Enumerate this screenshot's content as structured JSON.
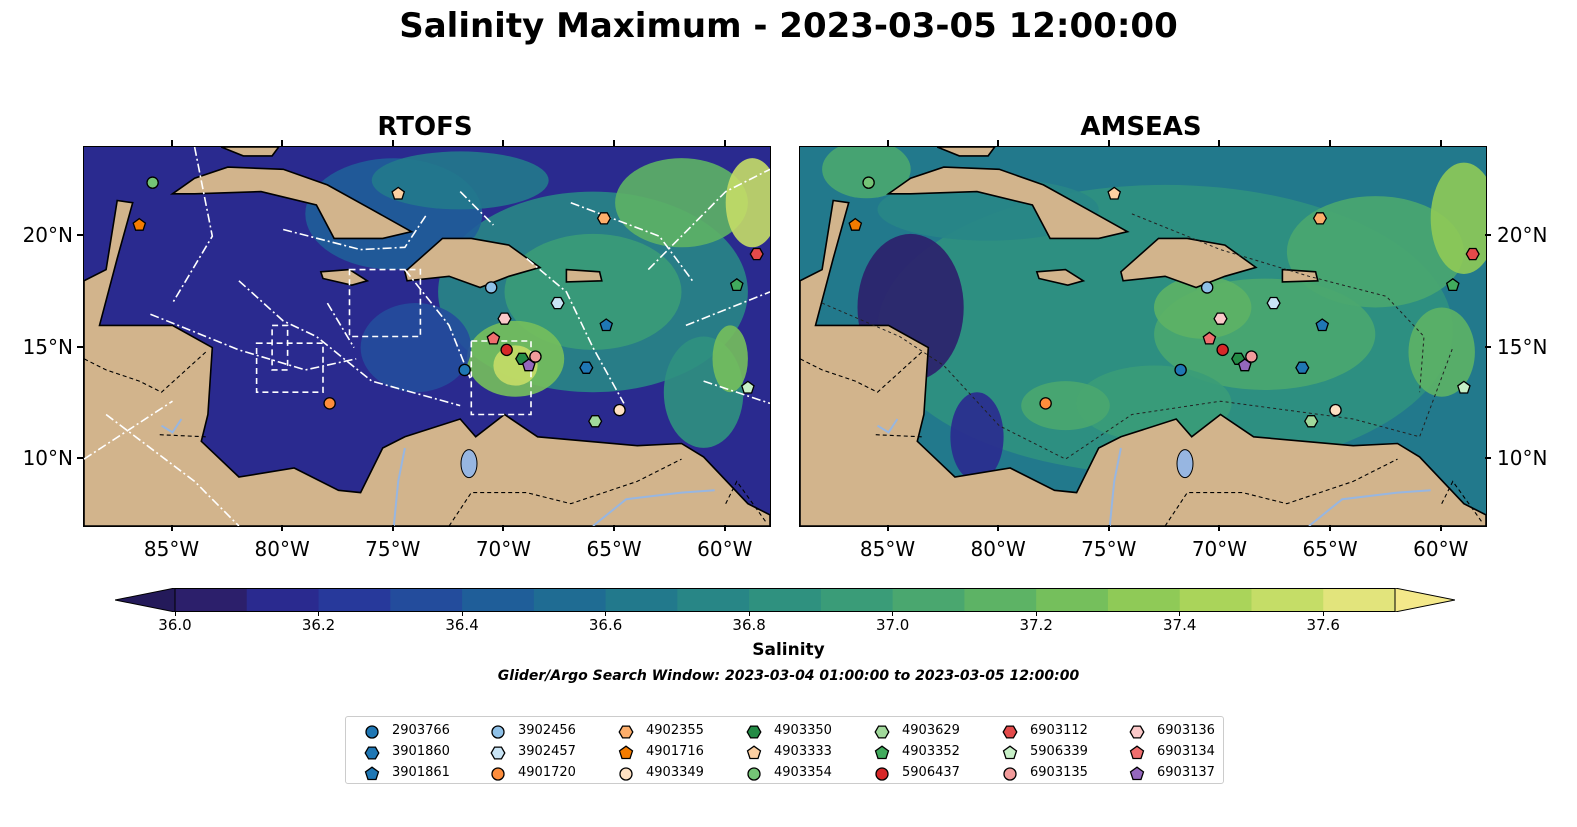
{
  "title": "Salinity Maximum - 2023-03-05 12:00:00",
  "panels": [
    {
      "title": "RTOFS"
    },
    {
      "title": "AMSEAS"
    }
  ],
  "colors": {
    "land": "#d2b48c",
    "lake": "#97b6e1",
    "colormap": [
      "#2c1f6b",
      "#2a2a8f",
      "#27399b",
      "#234c9c",
      "#1f5e99",
      "#1f6c93",
      "#22798c",
      "#288686",
      "#2f917f",
      "#3a9c78",
      "#4aa76f",
      "#5db365",
      "#75bf5c",
      "#8fca57",
      "#aad45a",
      "#c5dd67",
      "#e2e47c"
    ],
    "above": "#f4e98a",
    "below": "#241a5a"
  },
  "axes": {
    "lon_ticks": [
      "85°W",
      "80°W",
      "75°W",
      "70°W",
      "65°W",
      "60°W"
    ],
    "lat_ticks": [
      "20°N",
      "15°N",
      "10°N"
    ]
  },
  "colorbar": {
    "label": "Salinity",
    "min": 36.0,
    "max": 37.7,
    "step": 0.1,
    "tick_labels": [
      "36.0",
      "36.2",
      "36.4",
      "36.6",
      "36.8",
      "37.0",
      "37.2",
      "37.4",
      "37.6"
    ],
    "extend": "both"
  },
  "search_window": "Glider/Argo Search Window: 2023-03-04 01:00:00 to 2023-03-05 12:00:00",
  "chart_data": {
    "type": "scatter",
    "x_unit": "longitude",
    "y_unit": "latitude",
    "xlim": [
      -89,
      -58
    ],
    "ylim": [
      7,
      24
    ],
    "series": [
      {
        "name": "2903766",
        "marker": "circle",
        "color": "#1f77b4",
        "lon": -71.8,
        "lat": 14.0
      },
      {
        "name": "3901860",
        "marker": "hexagon",
        "color": "#1f77b4",
        "lon": -66.3,
        "lat": 14.1
      },
      {
        "name": "3901861",
        "marker": "pentagon",
        "color": "#1f77b4",
        "lon": -65.4,
        "lat": 16.0
      },
      {
        "name": "3902456",
        "marker": "circle",
        "color": "#8fc1e8",
        "lon": -70.6,
        "lat": 17.7
      },
      {
        "name": "3902457",
        "marker": "hexagon",
        "color": "#c9e4f5",
        "lon": -67.6,
        "lat": 17.0
      },
      {
        "name": "4901720",
        "marker": "circle",
        "color": "#fd8d3c",
        "lon": -77.9,
        "lat": 12.5
      },
      {
        "name": "4902355",
        "marker": "hexagon",
        "color": "#fdae6b",
        "lon": -65.5,
        "lat": 20.8
      },
      {
        "name": "4901716",
        "marker": "pentagon",
        "color": "#f57c00",
        "lon": -86.5,
        "lat": 20.5
      },
      {
        "name": "4903349",
        "marker": "circle",
        "color": "#fee0c2",
        "lon": -64.8,
        "lat": 12.2
      },
      {
        "name": "4903350",
        "marker": "hexagon",
        "color": "#238b45",
        "lon": -69.2,
        "lat": 14.5
      },
      {
        "name": "4903333",
        "marker": "pentagon",
        "color": "#fdd0a2",
        "lon": -74.8,
        "lat": 21.9
      },
      {
        "name": "4903354",
        "marker": "circle",
        "color": "#74c476",
        "lon": -85.9,
        "lat": 22.4
      },
      {
        "name": "4903629",
        "marker": "hexagon",
        "color": "#a1d99b",
        "lon": -65.9,
        "lat": 11.7
      },
      {
        "name": "4903352",
        "marker": "pentagon",
        "color": "#41ab5d",
        "lon": -59.5,
        "lat": 17.8
      },
      {
        "name": "5906437",
        "marker": "circle",
        "color": "#d62728",
        "lon": -69.9,
        "lat": 14.9
      },
      {
        "name": "6903112",
        "marker": "hexagon",
        "color": "#e34a4a",
        "lon": -58.6,
        "lat": 19.2
      },
      {
        "name": "5906339",
        "marker": "pentagon",
        "color": "#c7f0c7",
        "lon": -59.0,
        "lat": 13.2
      },
      {
        "name": "6903135",
        "marker": "circle",
        "color": "#f29b9b",
        "lon": -68.6,
        "lat": 14.6
      },
      {
        "name": "6903136",
        "marker": "hexagon",
        "color": "#fbc9c9",
        "lon": -70.0,
        "lat": 16.3
      },
      {
        "name": "6903134",
        "marker": "pentagon",
        "color": "#f06e6e",
        "lon": -70.5,
        "lat": 15.4
      },
      {
        "name": "6903137",
        "marker": "pentagon",
        "color": "#9467bd",
        "lon": -68.9,
        "lat": 14.2
      }
    ]
  }
}
